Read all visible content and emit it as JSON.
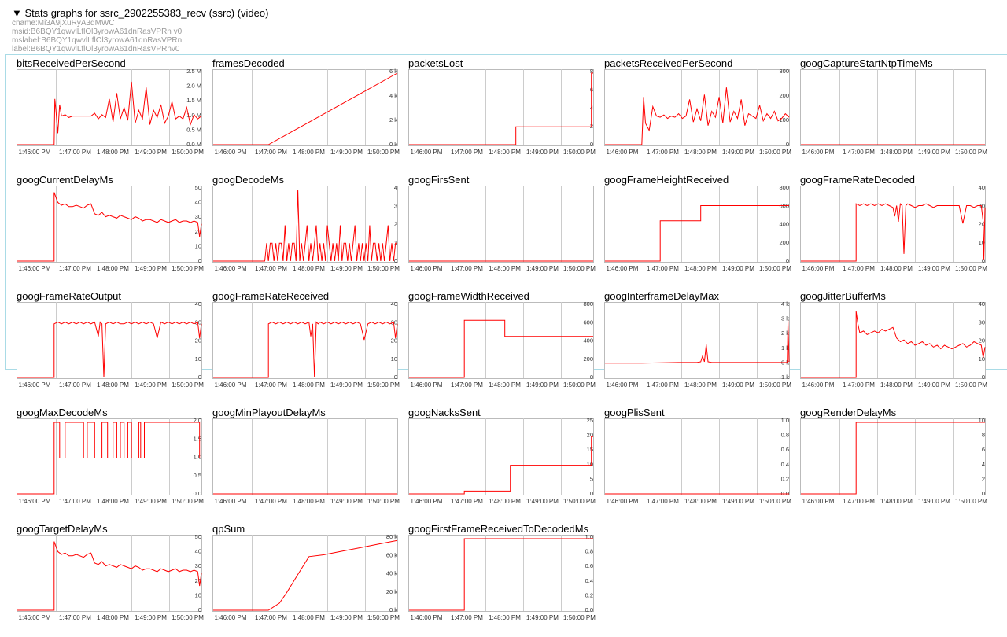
{
  "header": {
    "title": "▼ Stats graphs for ssrc_2902255383_recv (ssrc) (video)",
    "meta": [
      "cname:Mi3A9jXuRyA3dMWC",
      "msid:B6BQY1qwvlLflOl3yrowA61dnRasVPRn v0",
      "mslabel:B6BQY1qwvlLflOl3yrowA61dnRasVPRn",
      "label:B6BQY1qwvlLflOl3yrowA61dnRasVPRnv0"
    ]
  },
  "x_ticks": [
    "1:46:00 PM",
    "1:47:00 PM",
    "1:48:00 PM",
    "1:49:00 PM",
    "1:50:00 PM"
  ],
  "colors": {
    "line": "#ff0000",
    "grid": "#cccccc",
    "border": "#bbbbbb"
  },
  "chart_data": [
    {
      "type": "line",
      "title": "bitsReceivedPerSecond",
      "yticks": [
        "2.5 M",
        "2.0 M",
        "1.5 M",
        "1.0 M",
        "0.5 M",
        "0.0 M"
      ],
      "ylim": [
        0,
        2.5
      ],
      "x": [
        0,
        0.9,
        1.0,
        1.02,
        1.05,
        1.1,
        1.15,
        1.2,
        1.3,
        1.4,
        1.5,
        1.6,
        1.7,
        1.8,
        1.9,
        2.0,
        2.1,
        2.2,
        2.3,
        2.4,
        2.5,
        2.6,
        2.7,
        2.8,
        2.9,
        3.0,
        3.1,
        3.2,
        3.3,
        3.4,
        3.5,
        3.6,
        3.7,
        3.8,
        3.9,
        4.0,
        4.1,
        4.2,
        4.3,
        4.4,
        4.5,
        4.6,
        4.7,
        4.8,
        4.9,
        5.0
      ],
      "y": [
        0,
        0,
        0,
        1.6,
        1.2,
        0.4,
        1.4,
        1.0,
        1.05,
        0.95,
        1.0,
        1.0,
        1.0,
        1.0,
        1.0,
        1.0,
        1.1,
        0.9,
        1.05,
        0.95,
        1.6,
        0.8,
        1.8,
        0.9,
        1.3,
        0.85,
        2.2,
        0.75,
        1.2,
        0.9,
        2.0,
        0.7,
        1.2,
        0.95,
        1.4,
        0.75,
        1.0,
        1.5,
        0.9,
        1.0,
        0.9,
        1.3,
        0.7,
        1.05,
        0.9,
        1.0
      ]
    },
    {
      "type": "line",
      "title": "framesDecoded",
      "yticks": [
        "6 k",
        "4 k",
        "2 k",
        "0 k"
      ],
      "ylim": [
        0,
        6
      ],
      "x": [
        0,
        1.5,
        5.0
      ],
      "y": [
        0,
        0,
        6
      ]
    },
    {
      "type": "line",
      "title": "packetsLost",
      "yticks": [
        "8",
        "6",
        "4",
        "2",
        "0"
      ],
      "ylim": [
        0,
        8
      ],
      "x": [
        0,
        2.9,
        2.9,
        4.95,
        4.95,
        5.0
      ],
      "y": [
        0,
        0,
        2,
        2,
        8,
        8
      ]
    },
    {
      "type": "line",
      "title": "packetsReceivedPerSecond",
      "yticks": [
        "300",
        "200",
        "100",
        "0"
      ],
      "ylim": [
        0,
        300
      ],
      "x": [
        0,
        0.9,
        1.0,
        1.05,
        1.1,
        1.2,
        1.3,
        1.4,
        1.5,
        1.6,
        1.7,
        1.8,
        1.9,
        2.0,
        2.1,
        2.2,
        2.3,
        2.4,
        2.5,
        2.6,
        2.7,
        2.8,
        2.9,
        3.0,
        3.1,
        3.2,
        3.3,
        3.4,
        3.5,
        3.6,
        3.7,
        3.8,
        3.9,
        4.0,
        4.1,
        4.2,
        4.3,
        4.4,
        4.5,
        4.6,
        4.7,
        4.8,
        4.9,
        5.0
      ],
      "y": [
        0,
        0,
        0,
        200,
        90,
        60,
        160,
        120,
        115,
        125,
        110,
        120,
        115,
        130,
        110,
        120,
        190,
        95,
        150,
        100,
        210,
        80,
        140,
        115,
        200,
        90,
        240,
        95,
        140,
        110,
        190,
        80,
        130,
        120,
        110,
        165,
        100,
        130,
        110,
        140,
        100,
        110,
        130,
        115
      ]
    },
    {
      "type": "line",
      "title": "googCaptureStartNtpTimeMs",
      "yticks": [],
      "ylim": [
        0,
        1
      ],
      "x": [
        0,
        5.0
      ],
      "y": [
        0,
        0
      ]
    },
    {
      "type": "line",
      "title": "googCurrentDelayMs",
      "yticks": [
        "50",
        "40",
        "30",
        "20",
        "10",
        "0"
      ],
      "ylim": [
        0,
        50
      ],
      "x": [
        0,
        1.0,
        1.0,
        1.1,
        1.2,
        1.3,
        1.4,
        1.5,
        1.6,
        1.7,
        1.8,
        1.9,
        2.0,
        2.1,
        2.2,
        2.3,
        2.4,
        2.5,
        2.6,
        2.7,
        2.8,
        2.9,
        3.0,
        3.1,
        3.2,
        3.3,
        3.4,
        3.5,
        3.6,
        3.7,
        3.8,
        3.9,
        4.0,
        4.1,
        4.2,
        4.3,
        4.4,
        4.5,
        4.6,
        4.7,
        4.8,
        4.9,
        4.95,
        5.0
      ],
      "y": [
        0,
        0,
        48,
        41,
        39,
        40,
        38,
        38,
        39,
        38,
        37,
        39,
        40,
        33,
        32,
        34,
        31,
        32,
        31,
        30,
        32,
        31,
        30,
        29,
        31,
        30,
        28,
        29,
        29,
        28,
        27,
        29,
        28,
        27,
        28,
        29,
        27,
        28,
        28,
        27,
        28,
        27,
        17,
        26
      ]
    },
    {
      "type": "line",
      "title": "googDecodeMs",
      "yticks": [
        "4",
        "3",
        "2",
        "1",
        "0"
      ],
      "ylim": [
        0,
        4
      ],
      "x": [
        0,
        1.4,
        1.45,
        1.5,
        1.55,
        1.6,
        1.65,
        1.7,
        1.75,
        1.8,
        1.85,
        1.9,
        1.95,
        2.0,
        2.05,
        2.1,
        2.15,
        2.2,
        2.25,
        2.3,
        2.35,
        2.4,
        2.45,
        2.5,
        2.55,
        2.6,
        2.65,
        2.7,
        2.75,
        2.8,
        2.85,
        2.9,
        2.95,
        3.0,
        3.05,
        3.1,
        3.15,
        3.2,
        3.25,
        3.3,
        3.35,
        3.4,
        3.45,
        3.5,
        3.55,
        3.6,
        3.65,
        3.7,
        3.75,
        3.8,
        3.85,
        3.9,
        3.95,
        4.0,
        4.05,
        4.1,
        4.15,
        4.2,
        4.25,
        4.3,
        4.35,
        4.4,
        4.45,
        4.5,
        4.55,
        4.6,
        4.65,
        4.7,
        4.75,
        4.8,
        4.85,
        4.9,
        4.95,
        5.0
      ],
      "y": [
        0,
        0,
        1,
        0,
        1,
        1,
        0,
        1,
        0,
        1,
        1,
        0,
        2,
        0,
        1,
        0,
        1,
        1,
        0,
        4,
        0,
        1,
        0,
        1,
        2,
        0,
        1,
        0,
        1,
        2,
        0,
        1,
        0,
        1,
        0,
        2,
        1,
        0,
        1,
        0,
        1,
        0,
        2,
        0,
        1,
        1,
        0,
        1,
        0,
        1,
        2,
        0,
        1,
        0,
        1,
        0,
        1,
        0,
        2,
        0,
        1,
        1,
        0,
        1,
        0,
        1,
        0,
        1,
        2,
        0,
        1,
        0,
        1,
        1
      ]
    },
    {
      "type": "line",
      "title": "googFirsSent",
      "yticks": [],
      "ylim": [
        0,
        1
      ],
      "x": [
        0,
        5.0
      ],
      "y": [
        0,
        0
      ]
    },
    {
      "type": "line",
      "title": "googFrameHeightReceived",
      "yticks": [
        "800",
        "600",
        "400",
        "200",
        "0"
      ],
      "ylim": [
        0,
        800
      ],
      "x": [
        0,
        1.5,
        1.5,
        2.6,
        2.6,
        5.0
      ],
      "y": [
        0,
        0,
        450,
        450,
        620,
        620
      ]
    },
    {
      "type": "line",
      "title": "googFrameRateDecoded",
      "yticks": [
        "40",
        "30",
        "20",
        "10",
        "0"
      ],
      "ylim": [
        0,
        40
      ],
      "x": [
        0,
        1.5,
        1.5,
        1.6,
        1.7,
        1.8,
        1.9,
        2.0,
        2.1,
        2.2,
        2.3,
        2.4,
        2.5,
        2.55,
        2.6,
        2.65,
        2.7,
        2.75,
        2.8,
        2.85,
        2.9,
        3.0,
        3.1,
        3.2,
        3.3,
        3.4,
        3.5,
        3.6,
        3.7,
        3.8,
        3.9,
        4.0,
        4.1,
        4.2,
        4.3,
        4.4,
        4.5,
        4.6,
        4.7,
        4.8,
        4.9,
        4.95,
        4.97,
        5.0
      ],
      "y": [
        0,
        0,
        32,
        31,
        32,
        31,
        32,
        31,
        32,
        31,
        32,
        31,
        30,
        25,
        31,
        22,
        32,
        31,
        4,
        31,
        32,
        31,
        30,
        31,
        31,
        32,
        31,
        30,
        31,
        31,
        31,
        31,
        31,
        31,
        31,
        21,
        31,
        31,
        30,
        31,
        31,
        22,
        1,
        30
      ]
    },
    {
      "type": "line",
      "title": "googFrameRateOutput",
      "yticks": [
        "40",
        "30",
        "20",
        "10",
        "0"
      ],
      "ylim": [
        0,
        40
      ],
      "x": [
        0,
        1.0,
        1.0,
        1.1,
        1.2,
        1.3,
        1.4,
        1.5,
        1.6,
        1.7,
        1.8,
        1.9,
        2.0,
        2.1,
        2.2,
        2.25,
        2.3,
        2.35,
        2.4,
        2.5,
        2.6,
        2.7,
        2.8,
        2.9,
        3.0,
        3.1,
        3.2,
        3.3,
        3.4,
        3.5,
        3.6,
        3.7,
        3.8,
        3.9,
        4.0,
        4.1,
        4.2,
        4.3,
        4.4,
        4.5,
        4.6,
        4.7,
        4.8,
        4.9,
        4.95,
        5.0
      ],
      "y": [
        0,
        0,
        30,
        31,
        30,
        31,
        30,
        31,
        30,
        31,
        30,
        31,
        30,
        31,
        23,
        31,
        30,
        0,
        30,
        31,
        30,
        31,
        30,
        30,
        31,
        30,
        31,
        30,
        31,
        30,
        31,
        30,
        22,
        31,
        30,
        31,
        30,
        31,
        30,
        31,
        30,
        31,
        30,
        31,
        22,
        30
      ]
    },
    {
      "type": "line",
      "title": "googFrameRateReceived",
      "yticks": [
        "40",
        "30",
        "20",
        "10",
        "0"
      ],
      "ylim": [
        0,
        40
      ],
      "x": [
        0,
        1.5,
        1.5,
        1.6,
        1.7,
        1.8,
        1.9,
        2.0,
        2.1,
        2.2,
        2.3,
        2.4,
        2.5,
        2.6,
        2.65,
        2.7,
        2.75,
        2.8,
        2.85,
        2.9,
        3.0,
        3.1,
        3.2,
        3.3,
        3.4,
        3.5,
        3.6,
        3.7,
        3.8,
        3.9,
        4.0,
        4.1,
        4.2,
        4.3,
        4.4,
        4.5,
        4.6,
        4.7,
        4.8,
        4.9,
        4.95,
        5.0
      ],
      "y": [
        0,
        0,
        30,
        31,
        30,
        31,
        30,
        31,
        30,
        31,
        30,
        31,
        30,
        31,
        23,
        30,
        0,
        31,
        30,
        31,
        30,
        31,
        30,
        31,
        30,
        31,
        30,
        31,
        30,
        31,
        30,
        21,
        30,
        31,
        30,
        31,
        30,
        31,
        30,
        31,
        22,
        30
      ]
    },
    {
      "type": "line",
      "title": "googFrameWidthReceived",
      "yticks": [
        "800",
        "600",
        "400",
        "200",
        "0"
      ],
      "ylim": [
        0,
        800
      ],
      "x": [
        0,
        1.5,
        1.5,
        2.6,
        2.6,
        5.0
      ],
      "y": [
        0,
        0,
        640,
        640,
        460,
        460
      ]
    },
    {
      "type": "line",
      "title": "googInterframeDelayMax",
      "yticks": [
        "4 k",
        "3 k",
        "2 k",
        "1 k",
        "0 k",
        "-1 k"
      ],
      "ylim": [
        -1,
        4
      ],
      "x": [
        0,
        1.0,
        2.0,
        2.5,
        2.6,
        2.65,
        2.7,
        2.75,
        2.8,
        2.9,
        3.0,
        3.5,
        4.0,
        4.5,
        4.9,
        4.95,
        4.97,
        5.0
      ],
      "y": [
        0,
        0,
        0.05,
        0.05,
        0.1,
        0.5,
        0.1,
        1.3,
        0.1,
        0.05,
        0.05,
        0.05,
        0.05,
        0.05,
        0.05,
        0.05,
        3.0,
        0.1
      ]
    },
    {
      "type": "line",
      "title": "googJitterBufferMs",
      "yticks": [
        "40",
        "30",
        "20",
        "10",
        "0"
      ],
      "ylim": [
        0,
        40
      ],
      "x": [
        0,
        1.5,
        1.5,
        1.55,
        1.6,
        1.7,
        1.8,
        1.9,
        2.0,
        2.1,
        2.2,
        2.3,
        2.4,
        2.5,
        2.6,
        2.7,
        2.8,
        2.9,
        3.0,
        3.1,
        3.2,
        3.3,
        3.4,
        3.5,
        3.6,
        3.7,
        3.8,
        3.9,
        4.0,
        4.1,
        4.2,
        4.3,
        4.4,
        4.5,
        4.6,
        4.7,
        4.8,
        4.9,
        4.95,
        5.0
      ],
      "y": [
        0,
        0,
        37,
        30,
        25,
        26,
        24,
        25,
        26,
        25,
        27,
        26,
        27,
        28,
        22,
        20,
        21,
        19,
        20,
        18,
        19,
        20,
        18,
        19,
        17,
        18,
        16,
        18,
        17,
        16,
        17,
        18,
        19,
        17,
        18,
        20,
        19,
        18,
        11,
        17
      ]
    },
    {
      "type": "line",
      "title": "googMaxDecodeMs",
      "yticks": [
        "2.0",
        "1.5",
        "1.0",
        "0.5",
        "0.0"
      ],
      "ylim": [
        0,
        2
      ],
      "x": [
        0,
        1.0,
        1.0,
        1.15,
        1.15,
        1.3,
        1.3,
        1.8,
        1.8,
        1.9,
        1.9,
        2.1,
        2.1,
        2.3,
        2.3,
        2.45,
        2.45,
        2.6,
        2.6,
        2.7,
        2.7,
        2.8,
        2.8,
        2.9,
        2.9,
        3.0,
        3.0,
        3.1,
        3.1,
        3.3,
        3.3,
        3.35,
        3.35,
        3.45,
        3.45,
        4.95,
        4.95,
        5.0
      ],
      "y": [
        0,
        0,
        2,
        2,
        1,
        1,
        2,
        2,
        1,
        1,
        2,
        2,
        1,
        1,
        2,
        2,
        1,
        1,
        2,
        2,
        1,
        1,
        2,
        2,
        1,
        1,
        2,
        2,
        1,
        1,
        2,
        2,
        1,
        1,
        2,
        2,
        1,
        1
      ]
    },
    {
      "type": "line",
      "title": "googMinPlayoutDelayMs",
      "yticks": [],
      "ylim": [
        0,
        1
      ],
      "x": [
        0,
        5.0
      ],
      "y": [
        0,
        0
      ]
    },
    {
      "type": "line",
      "title": "googNacksSent",
      "yticks": [
        "25",
        "20",
        "15",
        "10",
        "5",
        "0"
      ],
      "ylim": [
        0,
        25
      ],
      "x": [
        0,
        1.5,
        1.5,
        2.75,
        2.75,
        4.95,
        4.95,
        5.0
      ],
      "y": [
        0,
        0,
        1,
        1,
        10,
        10,
        20,
        20
      ]
    },
    {
      "type": "line",
      "title": "googPlisSent",
      "yticks": [
        "1.0",
        "0.8",
        "0.6",
        "0.4",
        "0.2",
        "0.0"
      ],
      "ylim": [
        0,
        1
      ],
      "x": [
        0,
        5.0
      ],
      "y": [
        0,
        0
      ]
    },
    {
      "type": "line",
      "title": "googRenderDelayMs",
      "yticks": [
        "10",
        "8",
        "6",
        "4",
        "2",
        "0"
      ],
      "ylim": [
        0,
        10
      ],
      "x": [
        0,
        1.5,
        1.5,
        5.0
      ],
      "y": [
        0,
        0,
        10,
        10
      ]
    },
    {
      "type": "line",
      "title": "googTargetDelayMs",
      "yticks": [
        "50",
        "40",
        "30",
        "20",
        "10",
        "0"
      ],
      "ylim": [
        0,
        50
      ],
      "x": [
        0,
        1.0,
        1.0,
        1.1,
        1.2,
        1.3,
        1.4,
        1.5,
        1.6,
        1.7,
        1.8,
        1.9,
        2.0,
        2.1,
        2.2,
        2.3,
        2.4,
        2.5,
        2.6,
        2.7,
        2.8,
        2.9,
        3.0,
        3.1,
        3.2,
        3.3,
        3.4,
        3.5,
        3.6,
        3.7,
        3.8,
        3.9,
        4.0,
        4.1,
        4.2,
        4.3,
        4.4,
        4.5,
        4.6,
        4.7,
        4.8,
        4.9,
        4.95,
        5.0
      ],
      "y": [
        0,
        0,
        48,
        41,
        39,
        40,
        38,
        38,
        39,
        38,
        37,
        39,
        40,
        33,
        32,
        34,
        31,
        32,
        31,
        30,
        32,
        31,
        30,
        29,
        31,
        30,
        28,
        29,
        29,
        28,
        27,
        29,
        28,
        27,
        28,
        29,
        27,
        28,
        28,
        27,
        28,
        27,
        17,
        26
      ]
    },
    {
      "type": "line",
      "title": "qpSum",
      "yticks": [
        "80 k",
        "60 k",
        "40 k",
        "20 k",
        "0 k"
      ],
      "ylim": [
        0,
        80
      ],
      "x": [
        0,
        1.5,
        1.8,
        2.0,
        2.3,
        2.6,
        3.0,
        3.5,
        4.0,
        4.5,
        5.0
      ],
      "y": [
        0,
        0,
        8,
        20,
        40,
        60,
        62,
        66,
        70,
        74,
        78
      ]
    },
    {
      "type": "line",
      "title": "googFirstFrameReceivedToDecodedMs",
      "yticks": [
        "1.0",
        "0.8",
        "0.6",
        "0.4",
        "0.2",
        "0.0"
      ],
      "ylim": [
        0,
        1
      ],
      "x": [
        0,
        1.5,
        1.5,
        5.0
      ],
      "y": [
        0,
        0,
        1,
        1
      ]
    }
  ]
}
